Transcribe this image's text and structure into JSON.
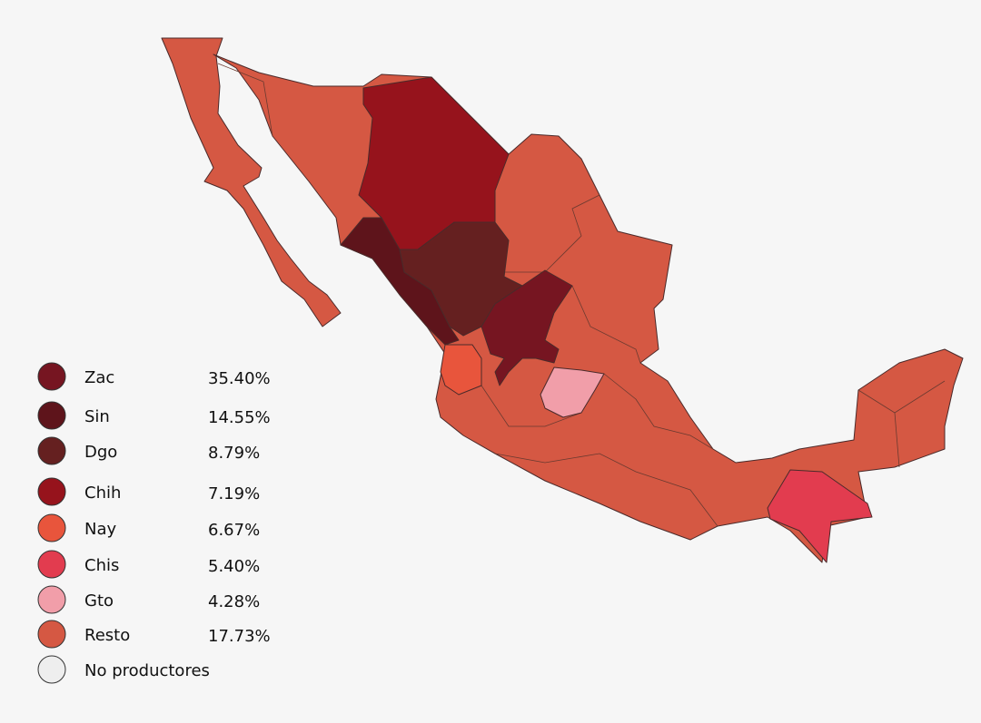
{
  "legend": {
    "items": [
      {
        "label": "Zac",
        "share": "35.40%",
        "color": "#761521"
      },
      {
        "label": "Sin",
        "share": "14.55%",
        "color": "#5e141b"
      },
      {
        "label": "Dgo",
        "share": "8.79%",
        "color": "#652020"
      },
      {
        "label": "Chih",
        "share": "7.19%",
        "color": "#96131c"
      },
      {
        "label": "Nay",
        "share": "6.67%",
        "color": "#e8553c"
      },
      {
        "label": "Chis",
        "share": "5.40%",
        "color": "#e23c4f"
      },
      {
        "label": "Gto",
        "share": "4.28%",
        "color": "#f19ea9"
      },
      {
        "label": "Resto",
        "share": "17.73%",
        "color": "#d55843"
      }
    ],
    "no_data": {
      "label": "No productores",
      "color": "#eeeeee"
    }
  }
}
